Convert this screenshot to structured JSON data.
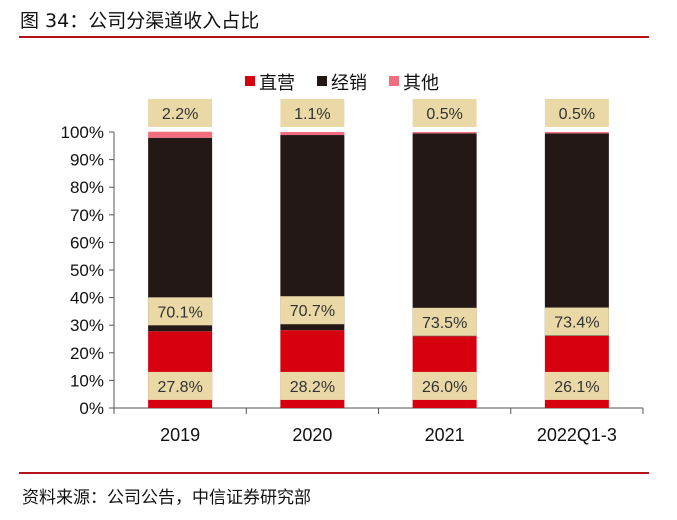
{
  "title": "图 34：公司分渠道收入占比",
  "source": "资料来源：公司公告，中信证券研究部",
  "chart_data": {
    "type": "bar",
    "stacked": true,
    "categories": [
      "2019",
      "2020",
      "2021",
      "2022Q1-3"
    ],
    "series": [
      {
        "name": "直营",
        "color": "#d7000f",
        "values": [
          27.8,
          28.2,
          26.0,
          26.1
        ],
        "labels": [
          "27.8%",
          "28.2%",
          "26.0%",
          "26.1%"
        ]
      },
      {
        "name": "经销",
        "color": "#231815",
        "values": [
          70.1,
          70.7,
          73.5,
          73.4
        ],
        "labels": [
          "70.1%",
          "70.7%",
          "73.5%",
          "73.4%"
        ]
      },
      {
        "name": "其他",
        "color": "#f26d7d",
        "values": [
          2.2,
          1.1,
          0.5,
          0.5
        ],
        "labels": [
          "2.2%",
          "1.1%",
          "0.5%",
          "0.5%"
        ]
      }
    ],
    "yticks": [
      "0%",
      "10%",
      "20%",
      "30%",
      "40%",
      "50%",
      "60%",
      "70%",
      "80%",
      "90%",
      "100%"
    ],
    "ylim": [
      0,
      100
    ],
    "legend": "top",
    "grid": false,
    "label_box_color": "#ead9a6"
  }
}
